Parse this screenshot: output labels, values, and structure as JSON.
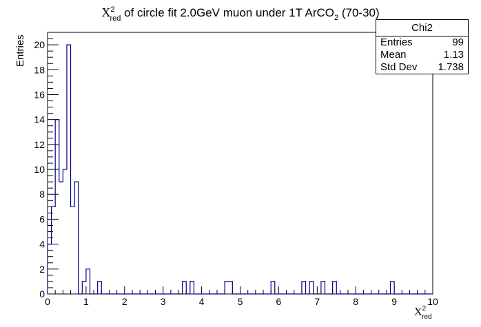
{
  "chart_data": {
    "type": "histogram",
    "title": {
      "symbol": "X",
      "sup": "2",
      "sub": "red",
      "text": " of circle fit 2.0GeV muon under 1T ArCO",
      "chem_sub": "2",
      "tail": " (70-30)"
    },
    "xlabel": {
      "symbol": "X",
      "sup": "2",
      "sub": "red"
    },
    "ylabel": "Entries",
    "xlim": [
      0,
      10
    ],
    "ylim": [
      0,
      21
    ],
    "x_ticks": [
      "0",
      "1",
      "2",
      "3",
      "4",
      "5",
      "6",
      "7",
      "8",
      "9",
      "10"
    ],
    "y_ticks": [
      "0",
      "2",
      "4",
      "6",
      "8",
      "10",
      "12",
      "14",
      "16",
      "18",
      "20"
    ],
    "bin_width": 0.1,
    "values": [
      4,
      7,
      14,
      9,
      10,
      20,
      7,
      9,
      0,
      1,
      2,
      0,
      0,
      1,
      0,
      0,
      0,
      0,
      0,
      0,
      0,
      0,
      0,
      0,
      0,
      0,
      0,
      0,
      0,
      0,
      0,
      0,
      0,
      0,
      0,
      1,
      0,
      1,
      0,
      0,
      0,
      0,
      0,
      0,
      0,
      0,
      1,
      1,
      0,
      0,
      0,
      0,
      0,
      0,
      0,
      0,
      0,
      0,
      1,
      0,
      0,
      0,
      0,
      0,
      0,
      0,
      1,
      0,
      1,
      0,
      0,
      1,
      0,
      0,
      1,
      0,
      0,
      0,
      0,
      0,
      0,
      0,
      0,
      0,
      0,
      0,
      0,
      0,
      0,
      1,
      0,
      0,
      0,
      0,
      0,
      0,
      0,
      0,
      0,
      0
    ],
    "line_color": "#000080",
    "stats": {
      "name": "Chi2",
      "rows": [
        {
          "label": "Entries",
          "value": "99"
        },
        {
          "label": "Mean",
          "value": "1.13"
        },
        {
          "label": "Std Dev",
          "value": "1.738"
        }
      ]
    }
  }
}
